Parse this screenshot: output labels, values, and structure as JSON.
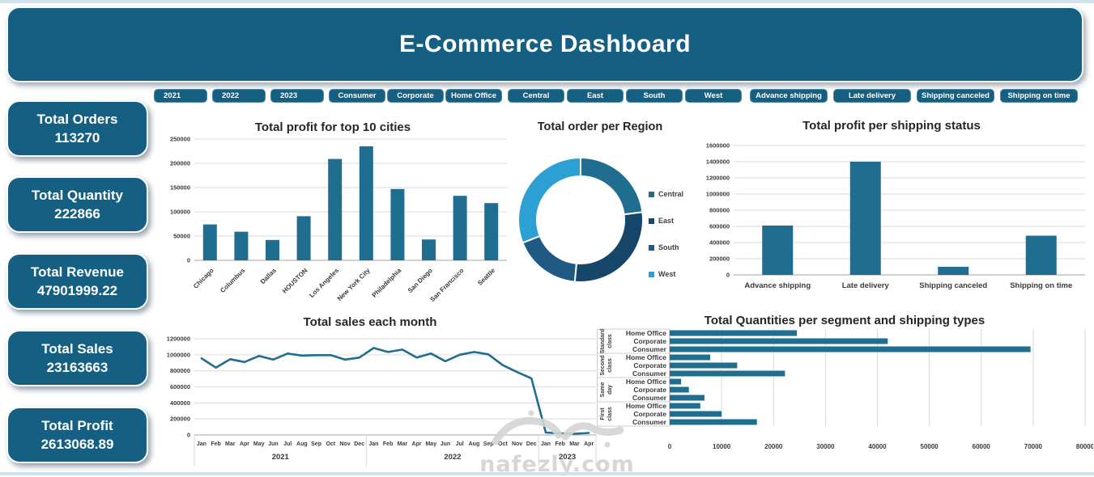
{
  "page": {
    "title": "E-Commerce Dashboard",
    "watermark": {
      "logo_text": "نفذلي",
      "domain": "nafezly.com"
    }
  },
  "colors": {
    "primary": "#156082",
    "chart_accent": "#1F6E8F",
    "donut": [
      "#1F6E8F",
      "#17466B",
      "#1E5A84",
      "#2CA0D3"
    ],
    "grid": "#D9D9D9",
    "axis": "#A6A6A6",
    "tick_text": "#3A3A3A",
    "title_text": "#262626",
    "edge": "#CFE2EE",
    "watermark": "#D2D2D2"
  },
  "kpis": [
    {
      "label": "Total Orders",
      "value": "113270"
    },
    {
      "label": "Total Quantity",
      "value": "222866"
    },
    {
      "label": "Total Revenue",
      "value": "47901999.22"
    },
    {
      "label": "Total Sales",
      "value": "23163663"
    },
    {
      "label": "Total Profit",
      "value": "2613068.89"
    }
  ],
  "filters": {
    "years": [
      "2021",
      "2022",
      "2023"
    ],
    "segments": [
      "Consumer",
      "Corporate",
      "Home Office"
    ],
    "regions": [
      "Central",
      "East",
      "South",
      "West"
    ],
    "shipping": [
      "Advance shipping",
      "Late delivery",
      "Shipping canceled",
      "Shipping on time"
    ]
  },
  "chart_data": [
    {
      "id": "city_profit",
      "type": "bar",
      "title": "Total profit for top 10 cities",
      "categories": [
        "Chicago",
        "Columbus",
        "Dallas",
        "HOUSTON",
        "Los Angeles",
        "New York City",
        "Philadelphia",
        "San Diego",
        "San Francisco",
        "Seattle"
      ],
      "values": [
        74000,
        59000,
        42000,
        91000,
        209000,
        235000,
        147000,
        43000,
        133000,
        118000
      ],
      "ylim": [
        0,
        250000
      ],
      "ytick": 50000,
      "grid": true
    },
    {
      "id": "region_orders",
      "type": "pie",
      "subtype": "donut",
      "title": "Total order per Region",
      "categories": [
        "Central",
        "East",
        "South",
        "West"
      ],
      "values_percent": [
        23,
        28.5,
        17.5,
        31
      ],
      "legend_position": "right"
    },
    {
      "id": "shipping_profit",
      "type": "bar",
      "title": "Total profit per shipping status",
      "categories": [
        "Advance shipping",
        "Late delivery",
        "Shipping canceled",
        "Shipping on time"
      ],
      "values": [
        610000,
        1400000,
        100000,
        485000
      ],
      "ylim": [
        0,
        1600000
      ],
      "ytick": 200000,
      "grid": true
    },
    {
      "id": "monthly_sales",
      "type": "line",
      "title": "Total sales each month",
      "month_labels": [
        "Jan",
        "Feb",
        "Mar",
        "Apr",
        "May",
        "Jun",
        "Jul",
        "Aug",
        "Sep",
        "Oct",
        "Nov",
        "Dec"
      ],
      "year_groups": [
        {
          "label": "2021",
          "count": 12
        },
        {
          "label": "2022",
          "count": 12
        },
        {
          "label": "2023",
          "count": 4
        }
      ],
      "values": [
        955000,
        840000,
        945000,
        910000,
        985000,
        940000,
        1015000,
        990000,
        995000,
        995000,
        940000,
        965000,
        1085000,
        1035000,
        1065000,
        965000,
        1015000,
        920000,
        1000000,
        1035000,
        1005000,
        870000,
        785000,
        705000,
        30000,
        20000,
        15000,
        25000
      ],
      "ylim": [
        0,
        1200000
      ],
      "ytick": 200000,
      "grid": true
    },
    {
      "id": "segment_shipping_qty",
      "type": "bar",
      "subtype": "horizontal-grouped",
      "title": "Total Quantities per segment and shipping types",
      "groups": [
        {
          "label": "Standard class",
          "rows": [
            {
              "label": "Home Office",
              "value": 24500
            },
            {
              "label": "Corporate",
              "value": 42000
            },
            {
              "label": "Consumer",
              "value": 69500
            }
          ]
        },
        {
          "label": "Second class",
          "rows": [
            {
              "label": "Home Office",
              "value": 7800
            },
            {
              "label": "Corporate",
              "value": 13000
            },
            {
              "label": "Consumer",
              "value": 22200
            }
          ]
        },
        {
          "label": "Same day",
          "rows": [
            {
              "label": "Home Office",
              "value": 2200
            },
            {
              "label": "Corporate",
              "value": 3700
            },
            {
              "label": "Consumer",
              "value": 6700
            }
          ]
        },
        {
          "label": "First class",
          "rows": [
            {
              "label": "Home Office",
              "value": 5900
            },
            {
              "label": "Corporate",
              "value": 10000
            },
            {
              "label": "Consumer",
              "value": 16800
            }
          ]
        }
      ],
      "xlim": [
        0,
        80000
      ],
      "xtick": 10000,
      "grid": true
    }
  ]
}
